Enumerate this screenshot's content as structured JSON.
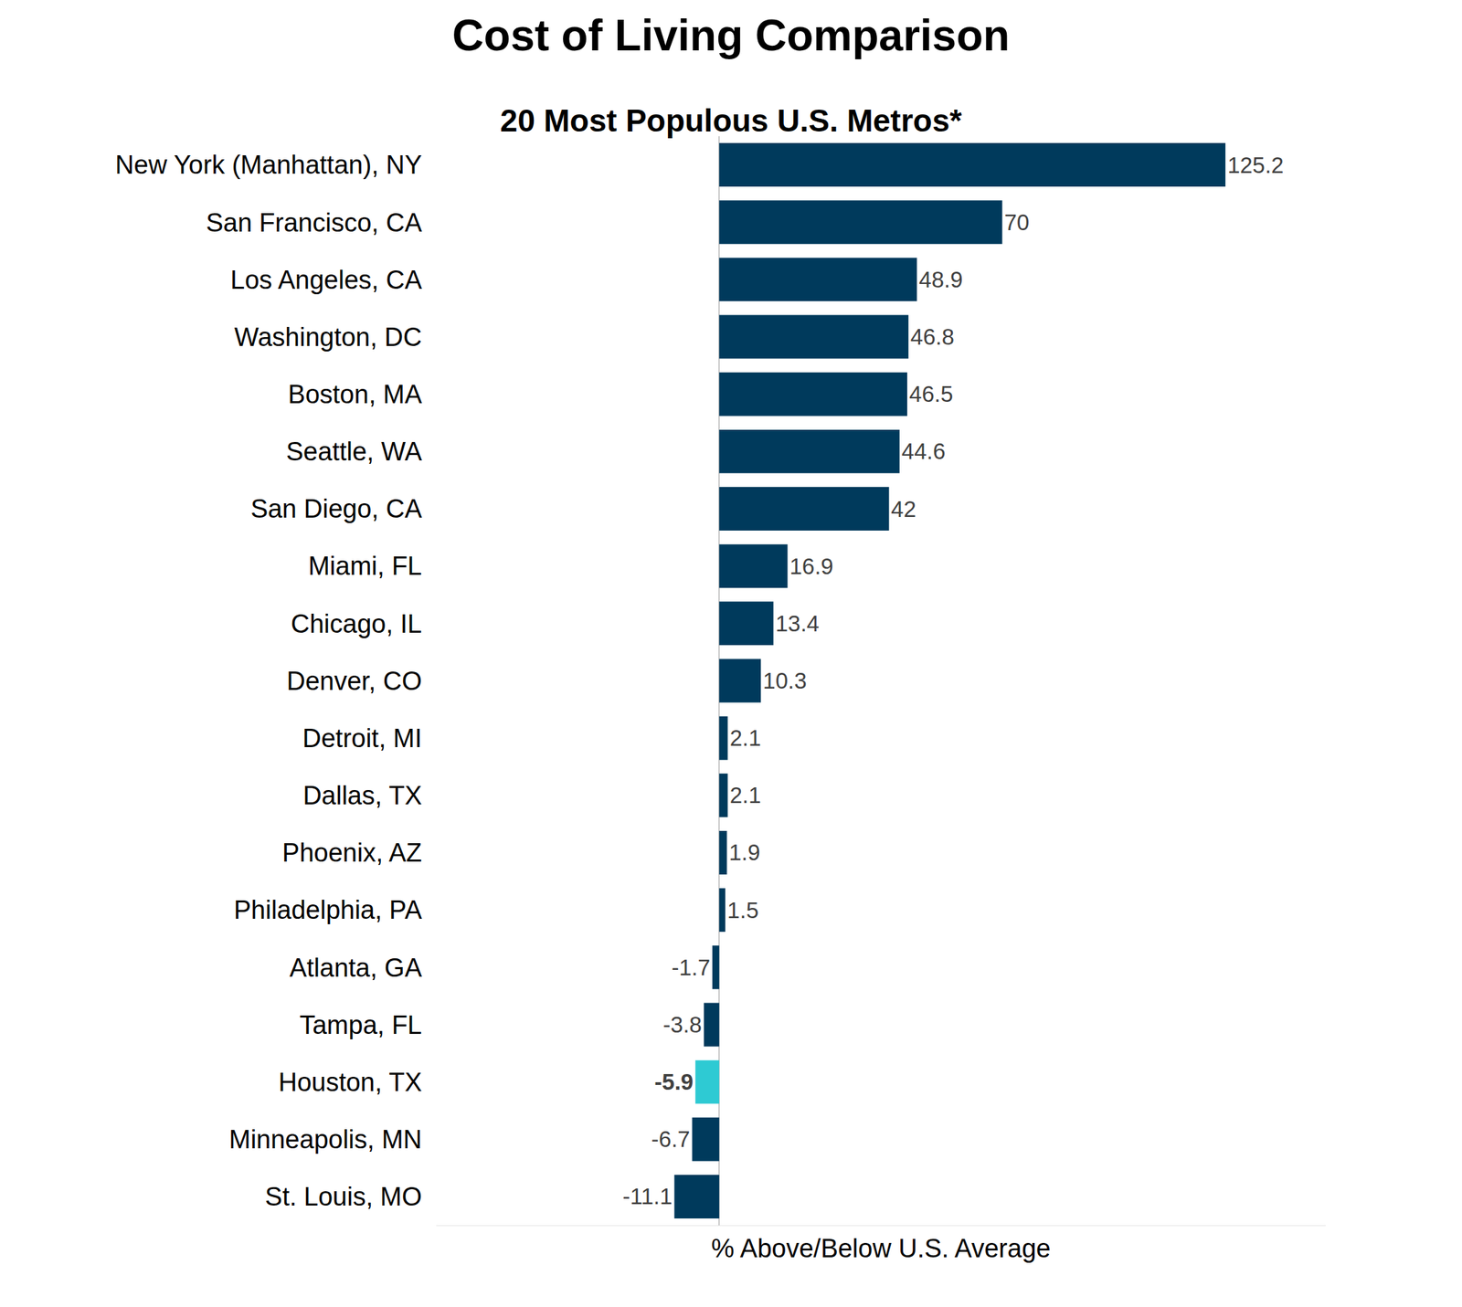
{
  "chart_data": {
    "type": "bar",
    "orientation": "horizontal",
    "title": "Cost of Living Comparison",
    "subtitle": "20 Most Populous U.S. Metros*",
    "x_label": "% Above/Below U.S. Average",
    "categories": [
      "New York (Manhattan), NY",
      "San Francisco, CA",
      "Los Angeles, CA",
      "Washington, DC",
      "Boston, MA",
      "Seattle, WA",
      "San Diego, CA",
      "Miami, FL",
      "Chicago, IL",
      "Denver, CO",
      "Detroit, MI",
      "Dallas, TX",
      "Phoenix, AZ",
      "Philadelphia, PA",
      "Atlanta, GA",
      "Tampa, FL",
      "Houston, TX",
      "Minneapolis, MN",
      "St. Louis, MO"
    ],
    "values": [
      125.2,
      70,
      48.9,
      46.8,
      46.5,
      44.6,
      42,
      16.9,
      13.4,
      10.3,
      2.1,
      2.1,
      1.9,
      1.5,
      -1.7,
      -3.8,
      -5.9,
      -6.7,
      -11.1
    ],
    "color": "#003a5c",
    "colors": [
      "#003a5c",
      "#003a5c",
      "#003a5c",
      "#003a5c",
      "#003a5c",
      "#003a5c",
      "#003a5c",
      "#003a5c",
      "#003a5c",
      "#003a5c",
      "#003a5c",
      "#003a5c",
      "#003a5c",
      "#003a5c",
      "#003a5c",
      "#003a5c",
      "#2ecad3",
      "#003a5c",
      "#003a5c"
    ],
    "xlim": [
      -70,
      150
    ],
    "xticks": [],
    "data_labels": true,
    "tick_labels": "y",
    "grid": false
  }
}
